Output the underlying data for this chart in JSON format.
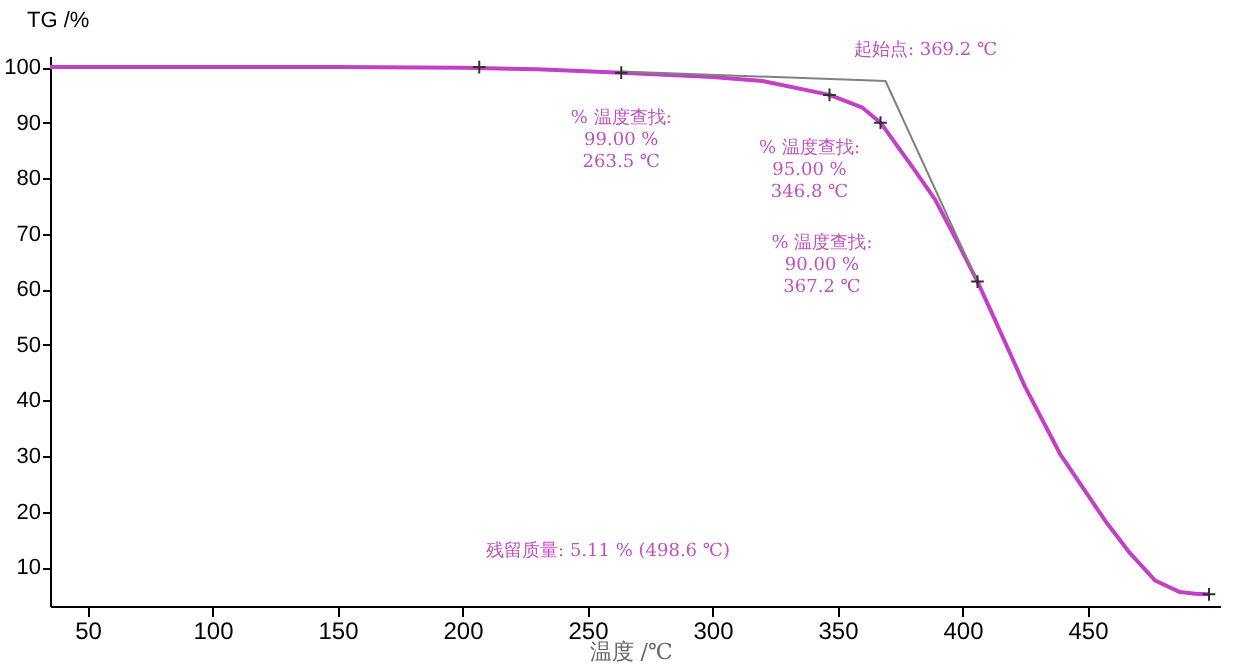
{
  "chart_data": {
    "type": "line",
    "xlabel": "温度 /℃",
    "ylabel": "TG /%",
    "xlim": [
      35,
      503
    ],
    "ylim": [
      3,
      102
    ],
    "xticks": [
      50,
      100,
      150,
      200,
      250,
      300,
      350,
      400,
      450
    ],
    "yticks": [
      10,
      20,
      30,
      40,
      50,
      60,
      70,
      80,
      90,
      100
    ],
    "grid": false,
    "series": [
      {
        "color": "#c23fc6",
        "x": [
          35,
          100,
          150,
          200,
          230,
          263.5,
          300,
          320,
          346.8,
          360,
          367.2,
          380,
          389,
          398,
          406,
          413,
          425,
          439,
          457,
          467,
          477,
          487,
          493,
          498.6
        ],
        "values": [
          100,
          100,
          100,
          99.9,
          99.6,
          99.0,
          98.2,
          97.5,
          95.0,
          92.7,
          90.0,
          82,
          76.2,
          68.5,
          61.4,
          54.5,
          42.5,
          30.4,
          18.4,
          12.5,
          7.6,
          5.5,
          5.2,
          5.1
        ]
      },
      {
        "type": "line",
        "color": "#808080",
        "x": [
          263.5,
          369.2,
          406
        ],
        "values": [
          99.2,
          97.5,
          61.4
        ]
      },
      {
        "type": "scatter",
        "color": "#303030",
        "marker": "cross",
        "x": [
          206.7,
          263.5,
          346.8,
          367.2,
          406,
          498.6
        ],
        "values": [
          100,
          99.0,
          95.0,
          90.0,
          61.4,
          5.1
        ]
      }
    ],
    "annotations": [
      {
        "text": "% 温度查找:\n99.00 %\n263.5 ℃",
        "x": 263.5,
        "y": 99.0
      },
      {
        "text": "% 温度查找:\n95.00 %\n346.8 ℃",
        "x": 346.8,
        "y": 95.0
      },
      "% 温度查找:\n90.00 %\n367.2 ℃",
      {
        "text": "起始点: 369.2 ℃",
        "x": 369.2,
        "y": 97.5
      },
      "残留质量: 5.11 % (498.6 ℃)"
    ]
  }
}
